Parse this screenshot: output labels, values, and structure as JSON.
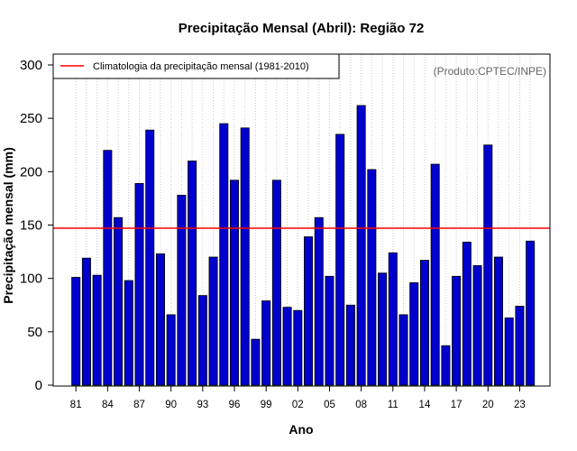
{
  "chart_data": {
    "type": "bar",
    "title": "Precipitação Mensal (Abril): Região 72",
    "xlabel": "Ano",
    "ylabel": "Precipitação mensal (mm)",
    "ylim": [
      0,
      300
    ],
    "yticks": [
      0,
      50,
      100,
      150,
      200,
      250,
      300
    ],
    "grid": "vertical dotted",
    "source_note": "(Produto:CPTEC/INPE)",
    "legend": {
      "label": "Climatologia da precipitação mensal (1981-2010)",
      "placement": "top-left"
    },
    "climatology": {
      "name": "Climatologia da precipitação mensal (1981-2010)",
      "value": 147,
      "color": "#ff0000"
    },
    "bar_color": "#0000cd",
    "categories": [
      "81",
      "82",
      "83",
      "84",
      "85",
      "86",
      "87",
      "88",
      "89",
      "90",
      "91",
      "92",
      "93",
      "94",
      "95",
      "96",
      "97",
      "98",
      "99",
      "00",
      "01",
      "02",
      "03",
      "04",
      "05",
      "06",
      "07",
      "08",
      "09",
      "10",
      "11",
      "12",
      "13",
      "14",
      "15",
      "16",
      "17",
      "18",
      "19",
      "20",
      "21",
      "22",
      "23",
      "24"
    ],
    "x_tick_labels": [
      "81",
      "84",
      "87",
      "90",
      "93",
      "96",
      "99",
      "02",
      "05",
      "08",
      "11",
      "14",
      "17",
      "20",
      "23"
    ],
    "values": [
      101,
      119,
      103,
      220,
      157,
      98,
      189,
      239,
      123,
      66,
      178,
      210,
      84,
      120,
      245,
      192,
      241,
      43,
      79,
      192,
      73,
      70,
      139,
      157,
      102,
      235,
      75,
      262,
      202,
      105,
      124,
      66,
      96,
      117,
      207,
      37,
      102,
      134,
      112,
      225,
      120,
      63,
      74,
      135
    ]
  }
}
